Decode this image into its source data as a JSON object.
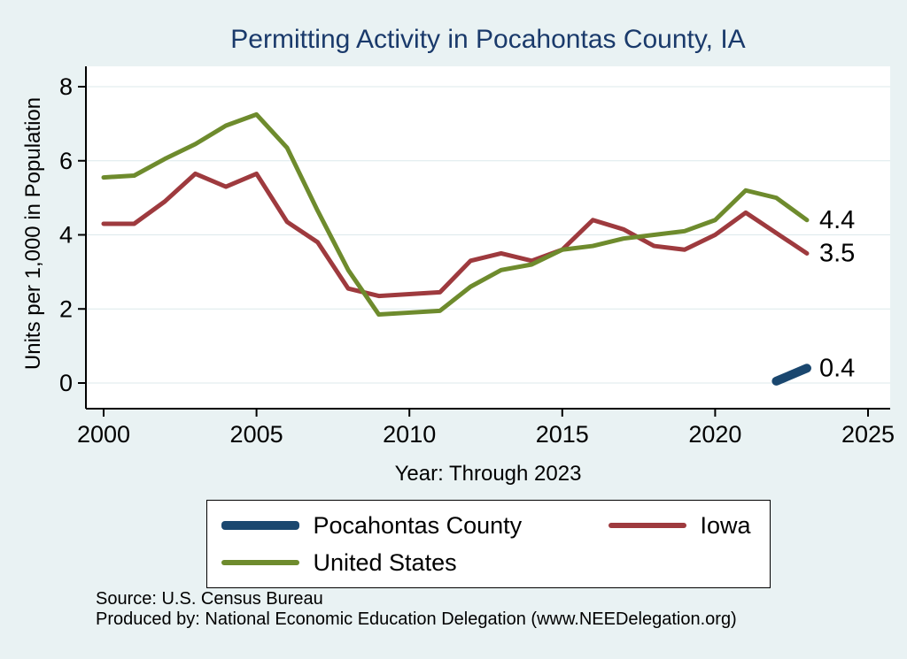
{
  "footer": {
    "source_line": "Source: U.S. Census Bureau",
    "produced_line": "Produced by: National Economic Education Delegation (www.NEEDelegation.org)"
  },
  "colors": {
    "background": "#e9f2f3",
    "title": "#1a3a6b",
    "plot_background": "#ffffff",
    "gridline": "#dce9eb",
    "axis": "#000000"
  },
  "chart_data": {
    "type": "line",
    "title": "Permitting Activity in Pocahontas County, IA",
    "xlabel": "Year: Through 2023",
    "ylabel": "Units per 1,000 in Population",
    "xlim": [
      1999.4,
      2025.7
    ],
    "ylim": [
      0,
      8
    ],
    "xticks": [
      2000,
      2005,
      2010,
      2015,
      2020,
      2025
    ],
    "yticks": [
      0,
      2,
      4,
      6,
      8
    ],
    "grid": true,
    "legend_position": "bottom",
    "series": [
      {
        "name": "Pocahontas County",
        "color": "#1a476f",
        "linewidth": 10,
        "x": [
          2022,
          2023
        ],
        "values": [
          0.05,
          0.4
        ],
        "end_label": "0.4"
      },
      {
        "name": "Iowa",
        "color": "#9e3a3e",
        "linewidth": 5,
        "x": [
          2000,
          2001,
          2002,
          2003,
          2004,
          2005,
          2006,
          2007,
          2008,
          2009,
          2010,
          2011,
          2012,
          2013,
          2014,
          2015,
          2016,
          2017,
          2018,
          2019,
          2020,
          2021,
          2022,
          2023
        ],
        "values": [
          4.3,
          4.3,
          4.9,
          5.65,
          5.3,
          5.65,
          4.35,
          3.8,
          2.55,
          2.35,
          2.4,
          2.45,
          3.3,
          3.5,
          3.3,
          3.6,
          4.4,
          4.15,
          3.7,
          3.6,
          4.0,
          4.6,
          4.05,
          3.5
        ],
        "end_label": "3.5"
      },
      {
        "name": "United States",
        "color": "#6e8b2d",
        "linewidth": 5,
        "x": [
          2000,
          2001,
          2002,
          2003,
          2004,
          2005,
          2006,
          2007,
          2008,
          2009,
          2010,
          2011,
          2012,
          2013,
          2014,
          2015,
          2016,
          2017,
          2018,
          2019,
          2020,
          2021,
          2022,
          2023
        ],
        "values": [
          5.55,
          5.6,
          6.05,
          6.45,
          6.95,
          7.25,
          6.35,
          4.65,
          3.05,
          1.85,
          1.9,
          1.95,
          2.6,
          3.05,
          3.2,
          3.6,
          3.7,
          3.9,
          4.0,
          4.1,
          4.4,
          5.2,
          5.0,
          4.4
        ],
        "end_label": "4.4"
      }
    ]
  }
}
